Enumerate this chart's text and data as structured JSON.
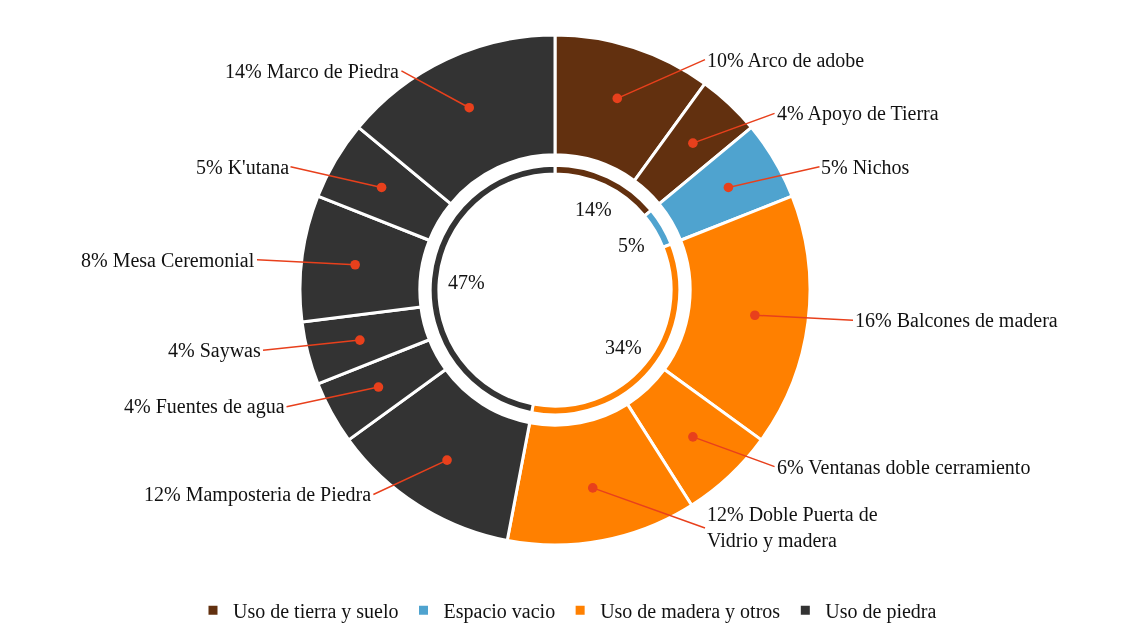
{
  "chart_data": [
    {
      "type": "donut",
      "categories": [
        "Arco de adobe",
        "Apoyo de Tierra",
        "Nichos",
        "Balcones de madera",
        "Ventanas doble cerramiento",
        "Doble Puerta de Vidrio y madera",
        "Mamposteria de Piedra",
        "Fuentes de agua",
        "Saywas",
        "Mesa Ceremonial",
        "K'utana",
        "Marco de Piedra"
      ],
      "values": [
        10,
        4,
        5,
        16,
        6,
        12,
        12,
        4,
        4,
        8,
        5,
        14
      ],
      "value_labels": [
        "10%",
        "4%",
        "5%",
        "16%",
        "6%",
        "12%",
        "12%",
        "4%",
        "4%",
        "8%",
        "5%",
        "14%"
      ],
      "colors": [
        "#62300f",
        "#62300f",
        "#4fa3cf",
        "#ff8000",
        "#ff8000",
        "#ff8000",
        "#333333",
        "#333333",
        "#333333",
        "#333333",
        "#333333",
        "#333333"
      ]
    },
    {
      "type": "donut",
      "categories": [
        "Uso de tierra y suelo",
        "Espacio vacio",
        "Uso de madera y otros",
        "Uso de piedra"
      ],
      "values": [
        14,
        5,
        34,
        47
      ],
      "value_labels": [
        "14%",
        "5%",
        "34%",
        "47%"
      ],
      "colors": [
        "#62300f",
        "#4fa3cf",
        "#ff8000",
        "#333333"
      ],
      "legend": "bottom"
    }
  ]
}
